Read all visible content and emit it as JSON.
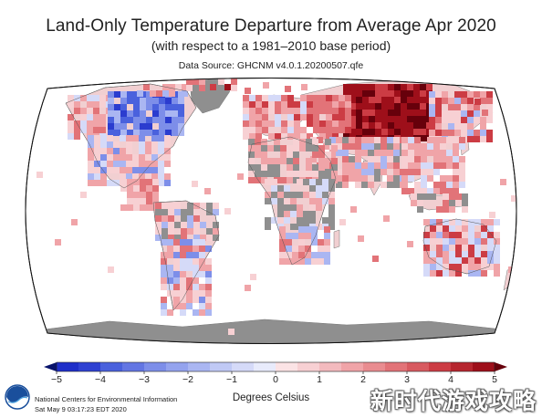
{
  "figure": {
    "title": "Land-Only Temperature Departure from Average Apr 2020",
    "subtitle": "(with respect to a 1981–2010 base period)",
    "source": "Data Source: GHCNM v4.0.1.20200507.qfe"
  },
  "colorbar": {
    "ticks": [
      "−5",
      "−4",
      "−3",
      "−2",
      "−1",
      "0",
      "1",
      "2",
      "3",
      "4",
      "5"
    ],
    "min": -5,
    "max": 5,
    "units": "Degrees Celsius",
    "colors": [
      "#08136b",
      "#1f2fc9",
      "#4a61dd",
      "#7d8ee9",
      "#aab6f2",
      "#d5daf8",
      "#f7d0d3",
      "#f0a4a8",
      "#e27378",
      "#cc3c44",
      "#9e0f1a",
      "#67000b"
    ]
  },
  "footer": {
    "org": "National Centers for Environmental Information",
    "date": "Sat May  9 03:17:23 EDT 2020",
    "logo_icon": "noaa-logo-icon"
  },
  "watermark": {
    "text": "新时代游戏攻略"
  },
  "map": {
    "projection": "robinson",
    "no_data_color": "#ffffff",
    "land_grey_color": "#8f8f8f",
    "ocean_color": "#ffffff",
    "regions": [
      {
        "name": "greenland",
        "anomaly": null
      },
      {
        "name": "alaska-canada-west",
        "anomaly": 1.5
      },
      {
        "name": "central-canada",
        "anomaly": -2.5
      },
      {
        "name": "eastern-canada",
        "anomaly": -3.5
      },
      {
        "name": "usa-west",
        "anomaly": 1.0
      },
      {
        "name": "usa-east",
        "anomaly": -1.0
      },
      {
        "name": "mexico",
        "anomaly": 1.5
      },
      {
        "name": "south-america-north",
        "anomaly": 1.5
      },
      {
        "name": "south-america-central",
        "anomaly": -0.5
      },
      {
        "name": "south-america-south",
        "anomaly": 1.0
      },
      {
        "name": "europe-west",
        "anomaly": 1.5
      },
      {
        "name": "europe-east",
        "anomaly": 2.5
      },
      {
        "name": "russia-north",
        "anomaly": 4.5
      },
      {
        "name": "siberia",
        "anomaly": 3.5
      },
      {
        "name": "central-asia",
        "anomaly": 2.0
      },
      {
        "name": "china",
        "anomaly": 1.5
      },
      {
        "name": "india",
        "anomaly": -0.5
      },
      {
        "name": "arabia",
        "anomaly": 1.0
      },
      {
        "name": "africa-north",
        "anomaly": 1.5
      },
      {
        "name": "africa-central",
        "anomaly": null
      },
      {
        "name": "africa-south",
        "anomaly": 1.0
      },
      {
        "name": "southeast-asia",
        "anomaly": 1.5
      },
      {
        "name": "australia",
        "anomaly": 1.0
      },
      {
        "name": "antarctica",
        "anomaly": null
      }
    ]
  }
}
